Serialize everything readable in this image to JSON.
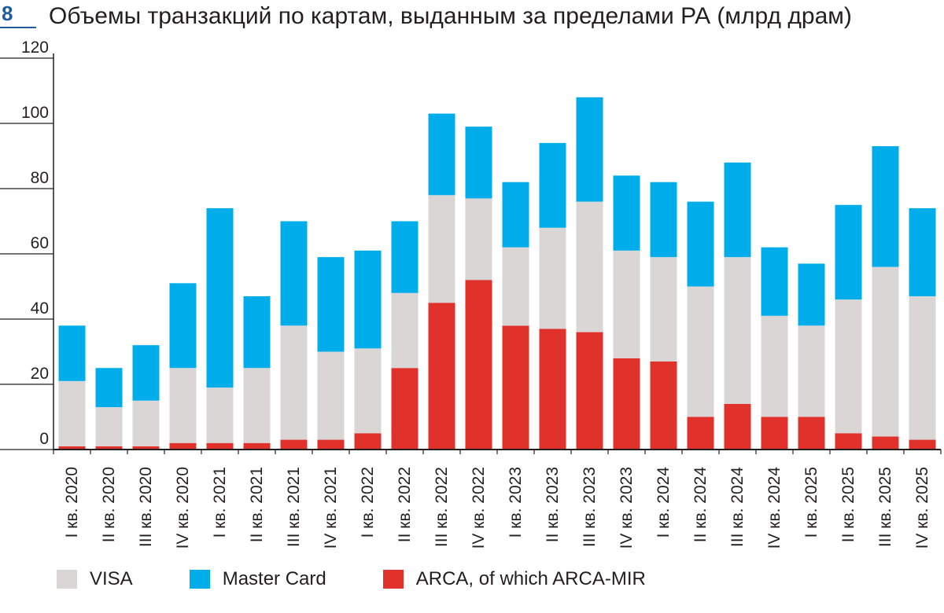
{
  "figure": {
    "number": "8",
    "title": "Объемы транзакций по картам, выданным за пределами РА (млрд драм)"
  },
  "colors": {
    "visa": "#dbd6d6",
    "mastercard": "#00adeb",
    "arca": "#e0322b",
    "axis": "#231f20"
  },
  "chart_data": {
    "type": "bar",
    "stacked": true,
    "title": "Объемы транзакций по картам, выданным за пределами РА (млрд драм)",
    "xlabel": "",
    "ylabel": "",
    "ylim": [
      0,
      120
    ],
    "yticks": [
      0,
      20,
      40,
      60,
      80,
      100,
      120
    ],
    "grid": false,
    "legend_position": "bottom",
    "categories": [
      "I кв. 2020",
      "II кв. 2020",
      "III кв. 2020",
      "IV кв. 2020",
      "I кв. 2021",
      "II кв. 2021",
      "III кв. 2021",
      "IV кв. 2021",
      "I кв. 2022",
      "II кв. 2022",
      "III кв. 2022",
      "IV кв. 2022",
      "I кв. 2023",
      "II кв. 2023",
      "III кв. 2023",
      "IV кв. 2023",
      "I кв. 2024",
      "II кв. 2024",
      "III кв. 2024",
      "IV кв. 2024",
      "I кв. 2025",
      "II кв. 2025",
      "III кв. 2025",
      "IV кв. 2025"
    ],
    "series": [
      {
        "name": "ARCA, of which ARCA-MIR",
        "color": "#e0322b",
        "values": [
          1,
          1,
          1,
          2,
          2,
          2,
          3,
          3,
          5,
          25,
          45,
          52,
          38,
          37,
          36,
          28,
          27,
          10,
          14,
          10,
          10,
          5,
          4,
          3
        ]
      },
      {
        "name": "VISA",
        "color": "#dbd6d6",
        "values": [
          20,
          12,
          14,
          23,
          17,
          23,
          35,
          27,
          26,
          23,
          33,
          25,
          24,
          31,
          40,
          33,
          32,
          40,
          45,
          31,
          28,
          41,
          52,
          44
        ]
      },
      {
        "name": "Master Card",
        "color": "#00adeb",
        "values": [
          17,
          12,
          17,
          26,
          55,
          22,
          32,
          29,
          30,
          22,
          25,
          22,
          20,
          26,
          32,
          23,
          23,
          26,
          29,
          21,
          19,
          29,
          37,
          27
        ]
      }
    ]
  },
  "legend": [
    {
      "label": "VISA",
      "color": "#dbd6d6"
    },
    {
      "label": "Master Card",
      "color": "#00adeb"
    },
    {
      "label": "ARCA, of which ARCA-MIR",
      "color": "#e0322b"
    }
  ]
}
